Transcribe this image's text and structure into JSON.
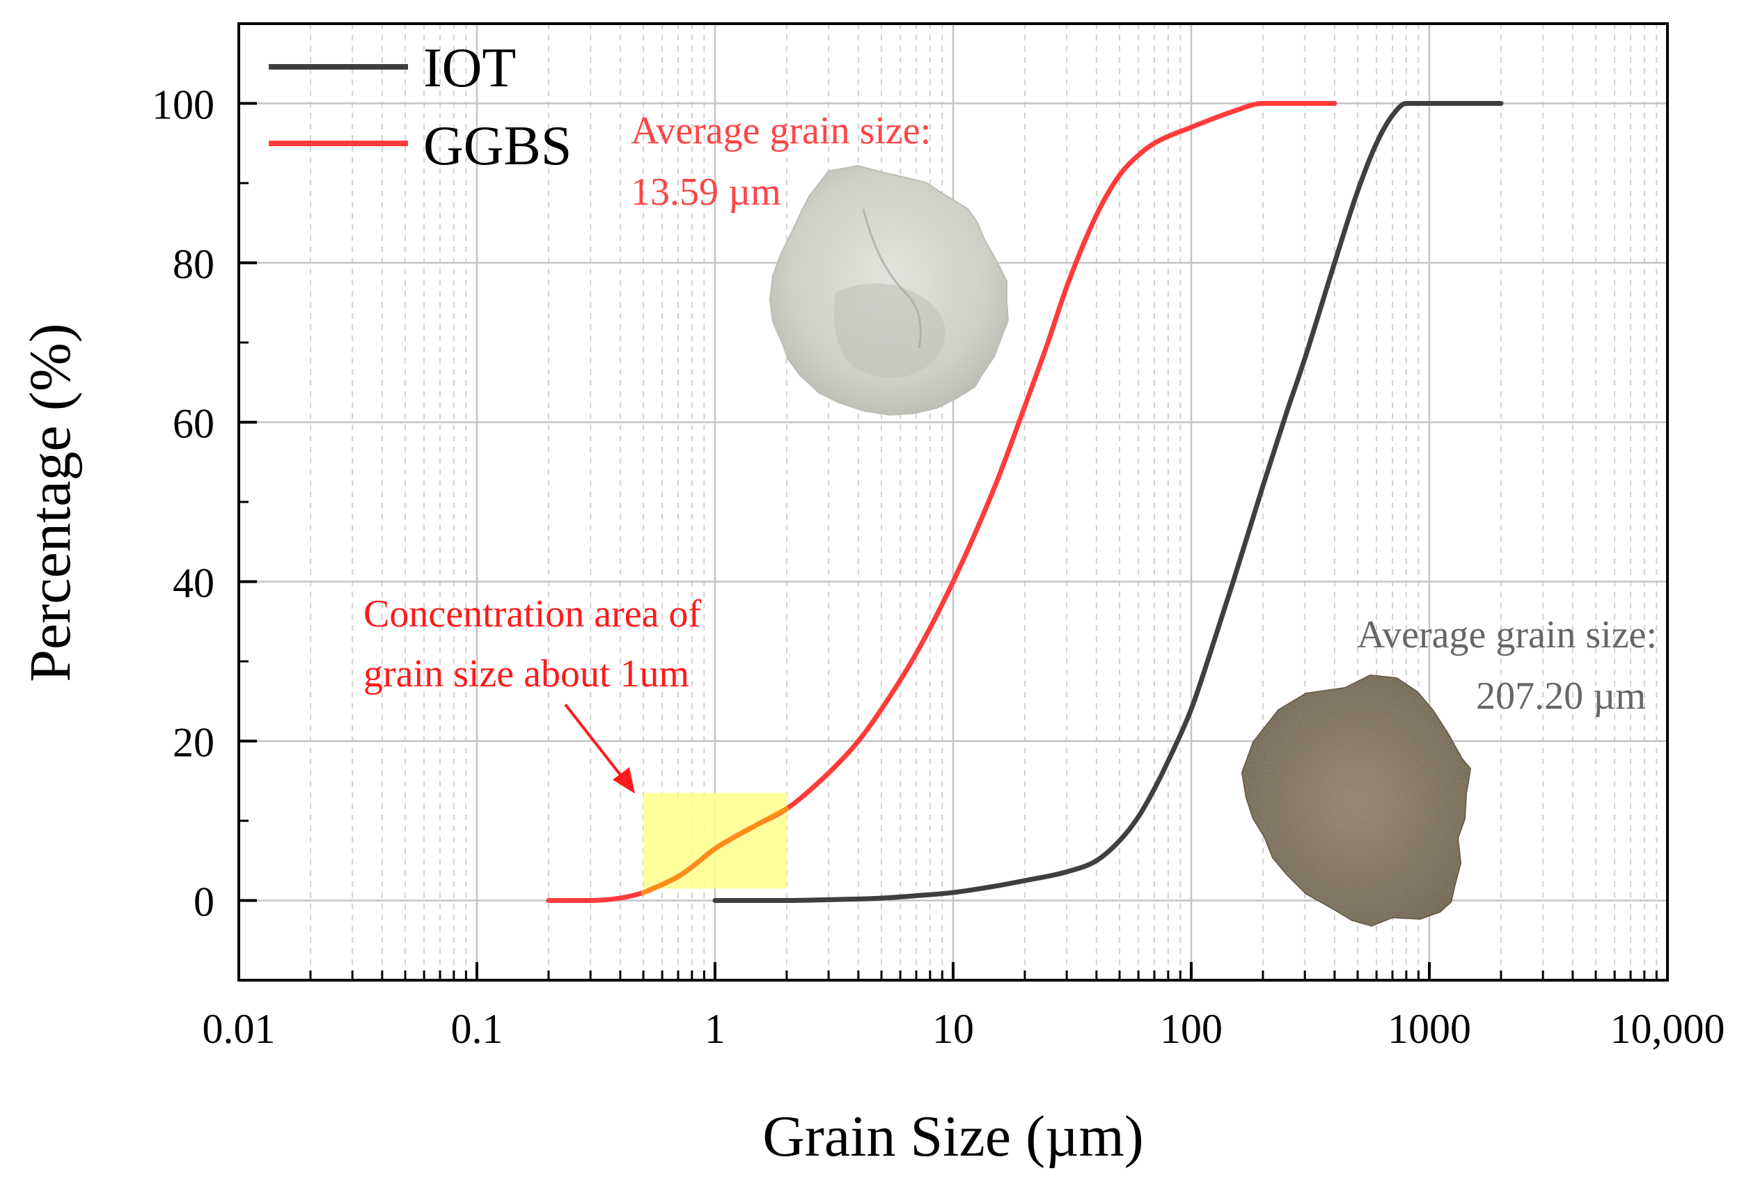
{
  "chart_data": {
    "type": "line",
    "xscale": "log",
    "xlabel": "Grain Size (µm)",
    "ylabel": "Percentage (%)",
    "xlim": [
      0.01,
      10000
    ],
    "ylim": [
      -10,
      110
    ],
    "grid": true,
    "x_ticks": [
      {
        "value": 0.01,
        "label": "0.01"
      },
      {
        "value": 0.1,
        "label": "0.1"
      },
      {
        "value": 1,
        "label": "1"
      },
      {
        "value": 10,
        "label": "10"
      },
      {
        "value": 100,
        "label": "100"
      },
      {
        "value": 1000,
        "label": "1000"
      },
      {
        "value": 10000,
        "label": "10,000"
      }
    ],
    "y_ticks": [
      {
        "value": 0,
        "label": "0"
      },
      {
        "value": 20,
        "label": "20"
      },
      {
        "value": 40,
        "label": "40"
      },
      {
        "value": 60,
        "label": "60"
      },
      {
        "value": 80,
        "label": "80"
      },
      {
        "value": 100,
        "label": "100"
      }
    ],
    "legend_position": "top-left",
    "series": [
      {
        "name": "IOT",
        "color": "#3f3f3f",
        "x": [
          1,
          2,
          3,
          5,
          7,
          10,
          15,
          20,
          30,
          40,
          50,
          60,
          70,
          80,
          100,
          120,
          150,
          200,
          250,
          300,
          400,
          500,
          600,
          700,
          800,
          1000,
          1500,
          2000
        ],
        "y": [
          0,
          0,
          0.1,
          0.3,
          0.6,
          1,
          1.8,
          2.5,
          3.6,
          5,
          7.5,
          10.5,
          14,
          17.5,
          24,
          31,
          40,
          52,
          61,
          68,
          80,
          89,
          95,
          98.5,
          100,
          100,
          100,
          100
        ]
      },
      {
        "name": "GGBS",
        "color": "#ff3b3b",
        "x": [
          0.2,
          0.3,
          0.4,
          0.5,
          0.6,
          0.7,
          0.8,
          1,
          1.5,
          2,
          3,
          4,
          5,
          7,
          10,
          15,
          20,
          25,
          30,
          40,
          50,
          60,
          70,
          100,
          150,
          200,
          300,
          400
        ],
        "y": [
          0,
          0,
          0.3,
          1,
          2,
          3,
          4.2,
          6.5,
          9.5,
          11.5,
          16,
          20,
          24,
          31,
          40,
          52,
          62,
          70,
          77,
          86,
          91,
          93.5,
          95,
          97,
          99,
          100,
          100,
          100
        ]
      }
    ],
    "highlight": {
      "x_range": [
        0.5,
        2
      ],
      "y_range": [
        1.5,
        13.5
      ],
      "color": "#ffff8a"
    },
    "annotations": [
      {
        "id": "ggbs-avg",
        "lines": [
          "Average grain size:",
          "13.59 µm"
        ],
        "color": "#ff4444"
      },
      {
        "id": "iot-avg",
        "lines": [
          "Average grain size:",
          "207.20 µm"
        ],
        "color": "#666666"
      },
      {
        "id": "concentration",
        "lines": [
          "Concentration area of",
          "grain size about 1um"
        ],
        "color": "#ff1a1a"
      }
    ],
    "sample_images": [
      {
        "name": "ggbs-powder",
        "color": "#d6d6d0"
      },
      {
        "name": "iot-sand",
        "color": "#7a6a4e"
      }
    ]
  }
}
